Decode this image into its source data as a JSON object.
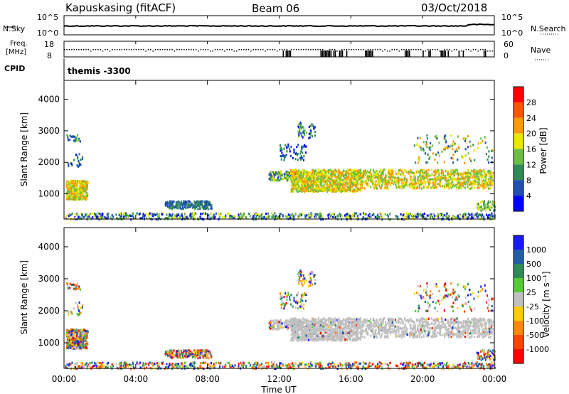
{
  "header": {
    "station": "Kapuskasing (fitACF)",
    "beam": "Beam 06",
    "date": "03/Oct/2018"
  },
  "top_panel": {
    "left_label": "N.Sky",
    "right_label": "N.Search",
    "left_ticks": [
      "10^5",
      "10^0"
    ],
    "right_ticks": [
      "10^5",
      "10^0"
    ]
  },
  "freq_panel": {
    "left_label_1": "Freq.",
    "left_label_2": "[MHz]",
    "right_label": "Nave",
    "left_ticks": [
      "18",
      "8"
    ],
    "right_ticks": [
      "60",
      "0"
    ]
  },
  "cpid": {
    "label": "CPID",
    "value": "themis -3300"
  },
  "chart_data": [
    {
      "type": "heatmap",
      "name": "power",
      "ylabel": "Slant Range [km]",
      "xlabel": "Time UT",
      "x_ticks": [
        "00:00",
        "04:00",
        "08:00",
        "12:00",
        "16:00",
        "20:00",
        "00:00"
      ],
      "y_ticks": [
        1000,
        2000,
        3000,
        4000
      ],
      "ylim": [
        200,
        4600
      ],
      "xlim_hours": [
        0,
        24
      ],
      "colorbar_label": "Power [dB]",
      "colorbar_ticks": [
        4,
        8,
        12,
        16,
        20,
        24,
        28
      ],
      "colors": [
        "#0000ff",
        "#1f4fb4",
        "#2e8b57",
        "#6abf40",
        "#e8e800",
        "#ff9900",
        "#ff5500",
        "#ff0000"
      ]
    },
    {
      "type": "heatmap",
      "name": "velocity",
      "ylabel": "Slant Range [km]",
      "xlabel": "Time UT",
      "x_ticks": [
        "00:00",
        "04:00",
        "08:00",
        "12:00",
        "16:00",
        "20:00",
        "00:00"
      ],
      "y_ticks": [
        1000,
        2000,
        3000,
        4000
      ],
      "ylim": [
        200,
        4600
      ],
      "xlim_hours": [
        0,
        24
      ],
      "colorbar_label": "Velocity [m s⁻¹]",
      "colorbar_ticks": [
        1000,
        500,
        100,
        25,
        -25,
        -100,
        -500,
        -1000
      ],
      "colors": [
        "#1a1aff",
        "#1f5faa",
        "#2e8b57",
        "#55cc33",
        "#c0c0c0",
        "#ffcc00",
        "#ff8800",
        "#ff4400",
        "#ff0000"
      ]
    }
  ],
  "x_axis_title": "Time UT"
}
